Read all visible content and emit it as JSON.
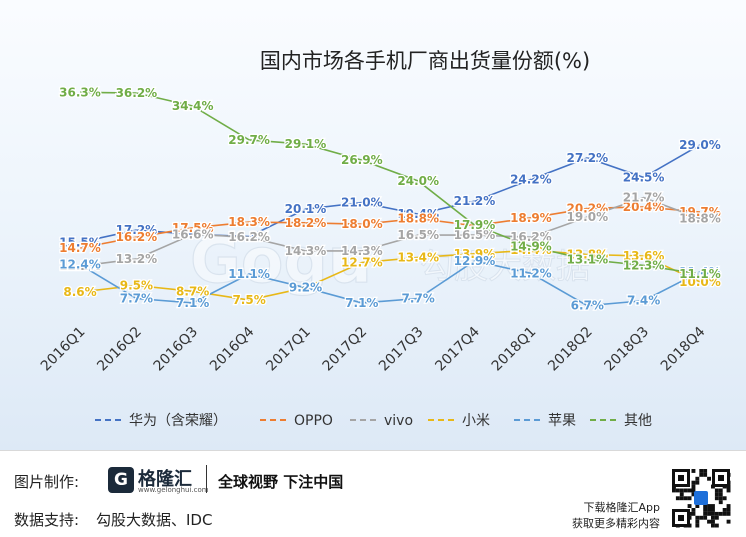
{
  "chart_data": {
    "type": "line",
    "title": "国内市场各手机厂商出货量份额(%)",
    "categories": [
      "2016Q1",
      "2016Q2",
      "2016Q3",
      "2016Q4",
      "2017Q1",
      "2017Q2",
      "2017Q3",
      "2017Q4",
      "2018Q1",
      "2018Q2",
      "2018Q3",
      "2018Q4"
    ],
    "ylim": [
      0,
      40
    ],
    "series": [
      {
        "name": "华为（含荣耀）",
        "color": "#4472c4",
        "values": [
          15.5,
          17.2,
          16.6,
          16.3,
          20.1,
          21.0,
          19.4,
          21.2,
          24.2,
          27.2,
          24.5,
          29.0
        ]
      },
      {
        "name": "OPPO",
        "color": "#ed7d31",
        "values": [
          14.7,
          16.2,
          17.5,
          18.3,
          18.2,
          18.0,
          18.8,
          17.8,
          18.9,
          20.2,
          20.4,
          19.7
        ]
      },
      {
        "name": "vivo",
        "color": "#a5a5a5",
        "values": [
          12.2,
          13.2,
          16.6,
          16.2,
          14.3,
          14.3,
          16.5,
          16.5,
          16.2,
          19.0,
          21.7,
          18.8
        ]
      },
      {
        "name": "小米",
        "color": "#e8b817",
        "values": [
          8.6,
          9.5,
          8.7,
          7.5,
          9.2,
          12.7,
          13.4,
          13.9,
          14.4,
          13.8,
          13.6,
          10.0
        ]
      },
      {
        "name": "苹果",
        "color": "#5b9bd5",
        "values": [
          12.4,
          7.7,
          7.1,
          11.1,
          9.2,
          7.1,
          7.7,
          12.9,
          11.2,
          6.7,
          7.4,
          11.4
        ]
      },
      {
        "name": "其他",
        "color": "#70ad47",
        "values": [
          36.3,
          36.2,
          34.4,
          29.7,
          29.1,
          26.9,
          24.0,
          17.9,
          14.9,
          13.1,
          12.3,
          11.1
        ]
      }
    ],
    "legend_position": "bottom",
    "grid": false,
    "watermark": "Gogu 勾股大数据"
  },
  "footer": {
    "made_by_label": "图片制作:",
    "brand_logo_letter": "G",
    "brand_name": "格隆汇",
    "brand_url": "www.gelonghui.com",
    "slogan": "全球视野 下注中国",
    "data_support_label": "数据支持:",
    "data_support_value": "勾股大数据、IDC",
    "app_line1": "下载格隆汇App",
    "app_line2": "获取更多精彩内容"
  }
}
